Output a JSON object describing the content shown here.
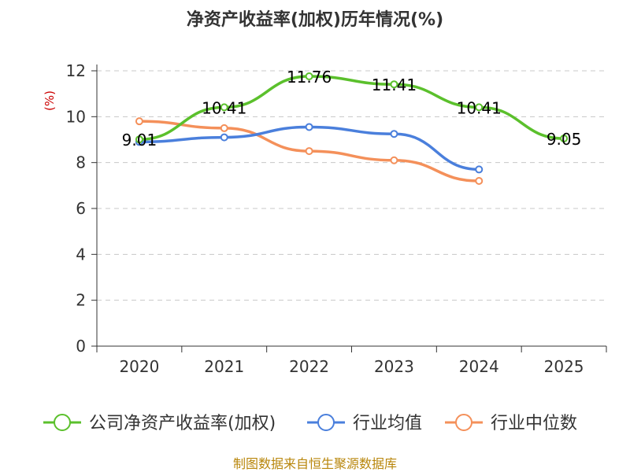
{
  "chart_data": {
    "type": "line",
    "title": "净资产收益率(加权)历年情况(%)",
    "ylabel": "(%)",
    "xlabel": "",
    "categories": [
      "2020",
      "2021",
      "2022",
      "2023",
      "2024",
      "2025"
    ],
    "ylim": [
      0,
      12
    ],
    "yticks": [
      0,
      2,
      4,
      6,
      8,
      10,
      12
    ],
    "grid": true,
    "legend_position": "bottom",
    "series": [
      {
        "name": "公司净资产收益率(加权)",
        "color": "#5bc02c",
        "values": [
          9.01,
          10.41,
          11.76,
          11.41,
          10.41,
          9.05
        ],
        "labels": [
          "9.01",
          "10.41",
          "11.76",
          "11.41",
          "10.41",
          "9.05"
        ]
      },
      {
        "name": "行业均值",
        "color": "#4a7fdc",
        "values": [
          8.9,
          9.1,
          9.55,
          9.25,
          7.7,
          null
        ]
      },
      {
        "name": "行业中位数",
        "color": "#f4905a",
        "values": [
          9.8,
          9.5,
          8.5,
          8.1,
          7.2,
          null
        ]
      }
    ],
    "source": "制图数据来自恒生聚源数据库"
  }
}
